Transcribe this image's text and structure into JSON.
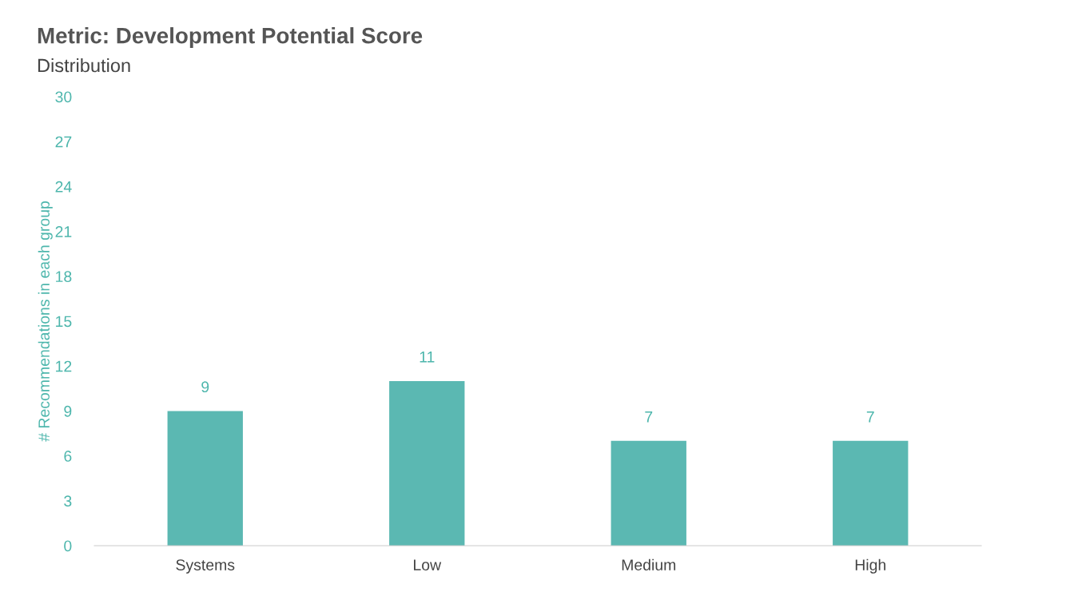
{
  "chart_data": {
    "type": "bar",
    "title": "Metric: Development Potential Score",
    "subtitle": "Distribution",
    "ylabel": "# Recommendations in each group",
    "categories": [
      "Systems",
      "Low",
      "Medium",
      "High"
    ],
    "values": [
      9,
      11,
      7,
      7
    ],
    "color": "#5bb8b2",
    "ylim": [
      0,
      30
    ],
    "yticks": [
      0,
      3,
      6,
      9,
      12,
      15,
      18,
      21,
      24,
      27,
      30
    ],
    "data_labels": true,
    "grid": false,
    "legend": false
  }
}
